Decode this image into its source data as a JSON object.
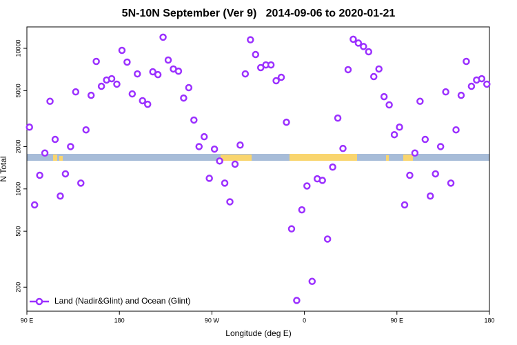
{
  "chart_data": {
    "type": "scatter",
    "title": "5N-10N September (Ver 9)   2014-09-06 to 2020-01-21",
    "xlabel": "Longitude (deg E)",
    "ylabel": "N Total",
    "xlim": [
      90,
      540
    ],
    "xticks": [
      {
        "value": 90,
        "label": "90 E"
      },
      {
        "value": 180,
        "label": "180"
      },
      {
        "value": 270,
        "label": "90 W"
      },
      {
        "value": 360,
        "label": "0"
      },
      {
        "value": 450,
        "label": "90 E"
      },
      {
        "value": 540,
        "label": "180"
      }
    ],
    "ylim": [
      135,
      14200
    ],
    "ylog": true,
    "yticks": [
      200,
      500,
      1000,
      2000,
      5000,
      10000
    ],
    "legend": "lower left",
    "series": [
      {
        "name": "Land (Nadir&Glint) and Ocean (Glint)",
        "color": "#9b30ff",
        "x": [
          92.5,
          97.5,
          102.5,
          107.5,
          112.5,
          117.5,
          122.5,
          127.5,
          132.5,
          137.5,
          142.5,
          147.5,
          152.5,
          157.5,
          162.5,
          167.5,
          172.5,
          177.5,
          182.5,
          187.5,
          192.5,
          197.5,
          202.5,
          207.5,
          212.5,
          217.5,
          222.5,
          227.5,
          232.5,
          237.5,
          242.5,
          247.5,
          252.5,
          257.5,
          262.5,
          267.5,
          272.5,
          277.5,
          282.5,
          287.5,
          292.5,
          297.5,
          302.5,
          307.5,
          312.5,
          317.5,
          322.5,
          327.5,
          332.5,
          337.5,
          342.5,
          347.5,
          352.5,
          357.5,
          362.5,
          367.5,
          372.5,
          377.5,
          382.5,
          387.5,
          392.5,
          397.5,
          402.5,
          407.5,
          412.5,
          417.5,
          422.5,
          427.5,
          432.5,
          437.5,
          442.5,
          447.5,
          452.5,
          457.5,
          462.5,
          467.5,
          472.5,
          477.5,
          482.5,
          487.5,
          492.5,
          497.5,
          502.5,
          507.5,
          512.5,
          517.5,
          522.5,
          527.5,
          532.5,
          537.5
        ],
        "values": [
          2750,
          770,
          1250,
          1800,
          4200,
          2250,
          890,
          1280,
          2000,
          4900,
          1100,
          2630,
          4630,
          8070,
          5370,
          5950,
          6080,
          5560,
          9670,
          7980,
          4740,
          6580,
          4240,
          4000,
          6810,
          6500,
          12000,
          8250,
          7130,
          6880,
          4430,
          5250,
          3090,
          2000,
          2350,
          1190,
          1920,
          1580,
          1100,
          810,
          1500,
          2050,
          6580,
          11500,
          9030,
          7290,
          7620,
          7620,
          5880,
          6220,
          2980,
          520,
          161,
          710,
          1050,
          220,
          1180,
          1150,
          440,
          1430,
          3190,
          1940,
          7050,
          11600,
          10900,
          10300,
          9450,
          6290,
          7130,
          4530,
          3960,
          2430,
          2750,
          770,
          1250,
          1800,
          4200,
          2250,
          890,
          1280,
          2000,
          4900,
          1100,
          2630,
          4630,
          8070,
          5370,
          5950,
          6080,
          5560
        ]
      }
    ]
  }
}
